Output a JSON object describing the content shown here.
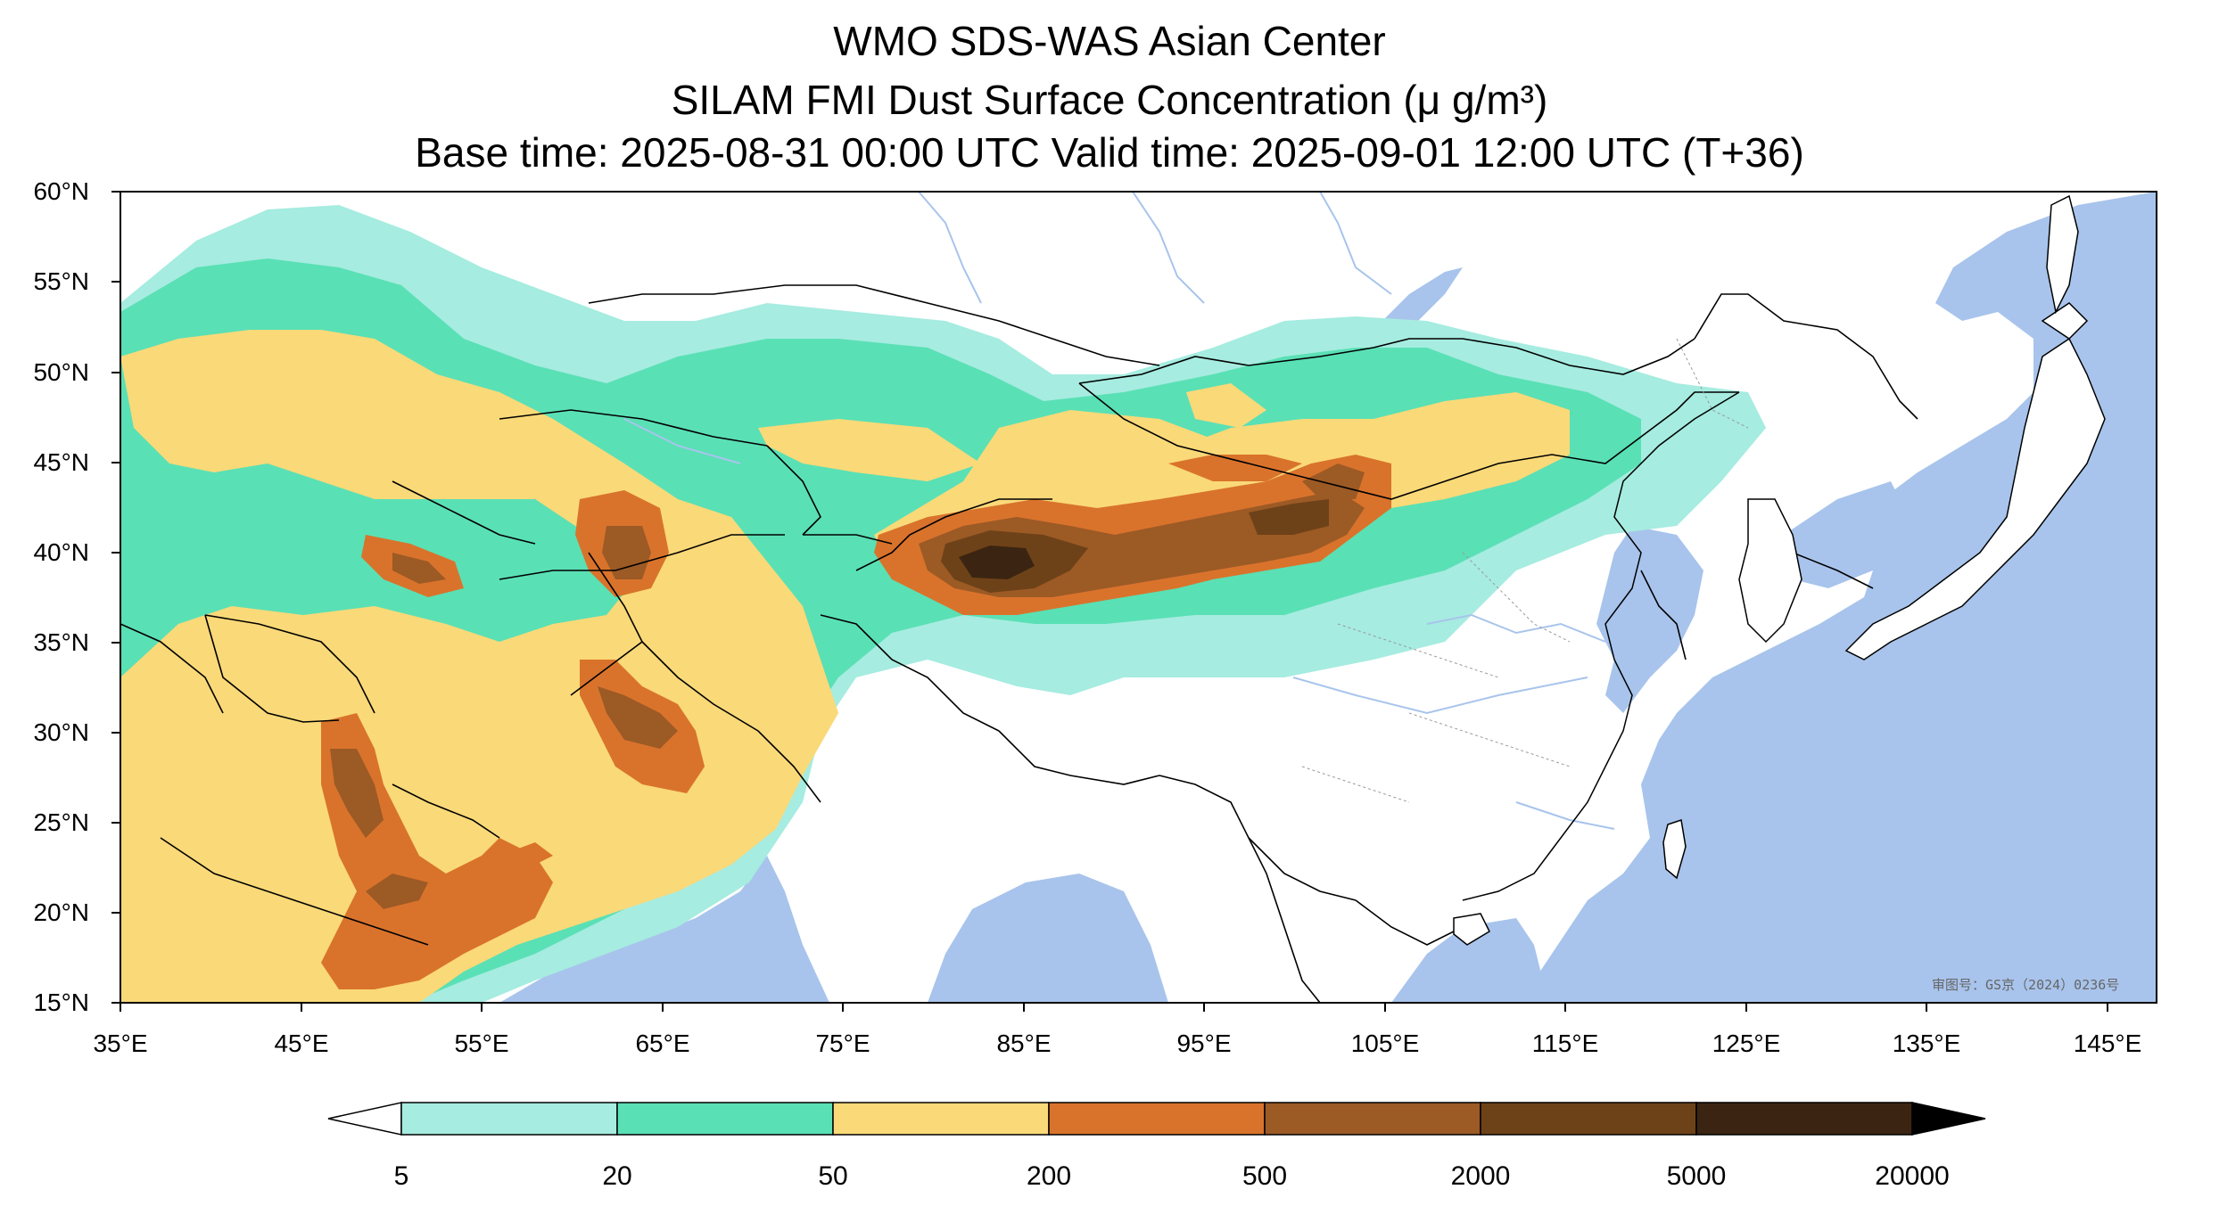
{
  "title": {
    "line1": "WMO SDS-WAS Asian Center",
    "line2": "SILAM FMI Dust Surface Concentration (μ g/m³)",
    "line3": "Base time: 2025-08-31 00:00 UTC Valid time: 2025-09-01 12:00 UTC (T+36)"
  },
  "axes": {
    "lat_ticks": [
      "60°N",
      "55°N",
      "50°N",
      "45°N",
      "40°N",
      "35°N",
      "30°N",
      "25°N",
      "20°N",
      "15°N"
    ],
    "lon_ticks": [
      "35°E",
      "45°E",
      "55°E",
      "65°E",
      "75°E",
      "85°E",
      "95°E",
      "105°E",
      "115°E",
      "125°E",
      "135°E",
      "145°E"
    ],
    "lat_range": [
      15,
      60
    ],
    "lon_range": [
      35,
      150
    ]
  },
  "colorbar": {
    "levels": [
      "5",
      "20",
      "50",
      "200",
      "500",
      "2000",
      "5000",
      "20000"
    ],
    "colors": [
      "#a6ece0",
      "#5ae0b5",
      "#fad978",
      "#d9732c",
      "#9c5a25",
      "#6e4218",
      "#3b2512"
    ],
    "extend": "both"
  },
  "colors": {
    "ocean": "#a8c4ec",
    "land": "#ffffff",
    "border": "#000000",
    "river": "#a8c4ec"
  },
  "approval_number": "审图号：GS京（2024）0236号"
}
